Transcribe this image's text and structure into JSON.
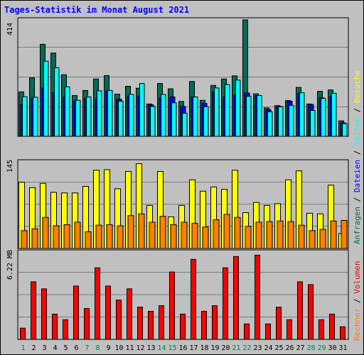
{
  "title": "Tages-Statistik im Monat August 2021",
  "colors": {
    "hits": "#006b54",
    "files": "#0000ff",
    "pages": "#00ffff",
    "visits": "#ffff00",
    "sites": "#ff8000",
    "volume": "#ff0000",
    "weekend": "#00805a",
    "weekday": "#000000",
    "grid": "#000000",
    "frame_bg": "#c0c0c0"
  },
  "chart_data": [
    {
      "type": "bar",
      "name": "requests-panel",
      "ymax_label": "414",
      "ymax": 414,
      "categories": [
        "1",
        "2",
        "3",
        "4",
        "5",
        "6",
        "7",
        "8",
        "9",
        "10",
        "11",
        "12",
        "13",
        "14",
        "15",
        "16",
        "17",
        "18",
        "19",
        "20",
        "21",
        "22",
        "23",
        "24",
        "25",
        "26",
        "27",
        "28",
        "29",
        "30",
        "31"
      ],
      "series": [
        {
          "name": "Anfragen",
          "values": [
            158,
            208,
            327,
            296,
            219,
            145,
            163,
            204,
            216,
            150,
            178,
            171,
            115,
            188,
            169,
            124,
            195,
            128,
            181,
            204,
            215,
            414,
            151,
            101,
            109,
            127,
            174,
            115,
            160,
            165,
            55
          ]
        },
        {
          "name": "Dateien",
          "values": [
            114,
            137,
            172,
            155,
            139,
            127,
            136,
            132,
            162,
            132,
            142,
            144,
            112,
            136,
            140,
            106,
            140,
            117,
            158,
            140,
            147,
            154,
            144,
            95,
            107,
            125,
            152,
            113,
            137,
            143,
            48
          ]
        },
        {
          "name": "Seiten",
          "values": [
            141,
            139,
            267,
            244,
            176,
            128,
            140,
            162,
            163,
            125,
            149,
            188,
            106,
            149,
            119,
            82,
            140,
            105,
            172,
            184,
            200,
            142,
            145,
            87,
            105,
            110,
            155,
            92,
            135,
            153,
            45
          ]
        }
      ]
    },
    {
      "type": "bar",
      "name": "visits-panel",
      "ymax_label": "145",
      "ymax": 145,
      "categories": [
        "1",
        "2",
        "3",
        "4",
        "5",
        "6",
        "7",
        "8",
        "9",
        "10",
        "11",
        "12",
        "13",
        "14",
        "15",
        "16",
        "17",
        "18",
        "19",
        "20",
        "21",
        "22",
        "23",
        "24",
        "25",
        "26",
        "27",
        "28",
        "29",
        "30",
        "31"
      ],
      "series": [
        {
          "name": "Besuche",
          "values": [
            111,
            102,
            109,
            94,
            93,
            93,
            104,
            131,
            132,
            100,
            129,
            142,
            72,
            129,
            53,
            72,
            115,
            96,
            103,
            99,
            131,
            60,
            77,
            72,
            75,
            115,
            130,
            59,
            58,
            106,
            25
          ]
        },
        {
          "name": "Rechner",
          "values": [
            30,
            33,
            52,
            38,
            40,
            44,
            28,
            39,
            40,
            38,
            55,
            58,
            44,
            54,
            40,
            44,
            42,
            36,
            48,
            57,
            52,
            37,
            44,
            45,
            46,
            45,
            39,
            30,
            32,
            46,
            47
          ]
        }
      ]
    },
    {
      "type": "bar",
      "name": "volume-panel",
      "ymax_label": "6.22 MB",
      "ymax": 6.22,
      "categories": [
        "1",
        "2",
        "3",
        "4",
        "5",
        "6",
        "7",
        "8",
        "9",
        "10",
        "11",
        "12",
        "13",
        "14",
        "15",
        "16",
        "17",
        "18",
        "19",
        "20",
        "21",
        "22",
        "23",
        "24",
        "25",
        "26",
        "27",
        "28",
        "29",
        "30",
        "31"
      ],
      "series": [
        {
          "name": "Volumen",
          "values": [
            0.8,
            4.1,
            3.6,
            1.8,
            1.4,
            3.8,
            2.2,
            5.1,
            3.8,
            2.8,
            3.6,
            2.3,
            2.0,
            2.4,
            4.8,
            1.8,
            5.7,
            2.0,
            2.4,
            5.1,
            5.9,
            1.1,
            6.0,
            1.1,
            2.3,
            1.4,
            4.1,
            3.9,
            1.4,
            1.8,
            0.9
          ]
        }
      ]
    }
  ],
  "legend_requests": [
    {
      "label": "Anfragen",
      "color": "#006b54"
    },
    {
      "label": "Dateien",
      "color": "#0000ff"
    },
    {
      "label": "Seiten",
      "color": "#00ffff"
    },
    {
      "label": "Besuche",
      "color": "#ffff00"
    }
  ],
  "legend_volume": [
    {
      "label": "Rechner",
      "color": "#ff8000"
    },
    {
      "label": "Volumen",
      "color": "#ff0000"
    }
  ],
  "separator": " / ",
  "weekend_days": [
    1,
    7,
    8,
    14,
    15,
    21,
    22,
    28,
    29
  ]
}
